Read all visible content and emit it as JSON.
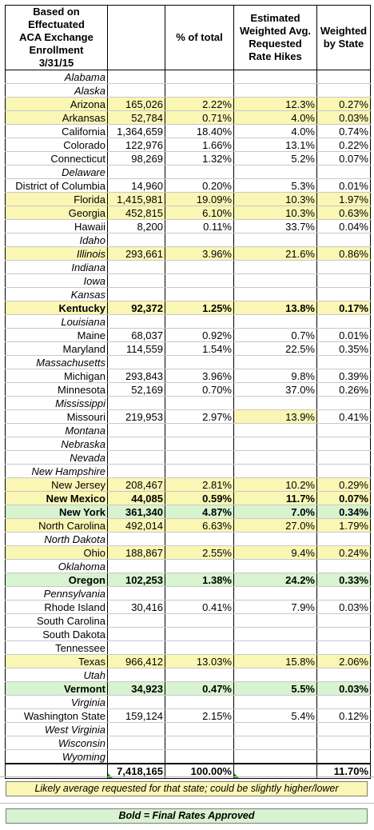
{
  "headers": {
    "col0": "Based on Effectuated\nACA Exchange Enrollment\n3/31/15",
    "col1": "",
    "col2": "% of total",
    "col3": "Estimated\nWeighted Avg.\nRequested\nRate Hikes",
    "col4": "Weighted\nby State"
  },
  "rows": [
    {
      "state": "Alabama",
      "enroll": "",
      "pct": "",
      "hike": "",
      "weighted": "",
      "style": "none"
    },
    {
      "state": "Alaska",
      "enroll": "",
      "pct": "",
      "hike": "",
      "weighted": "",
      "style": "none"
    },
    {
      "state": "Arizona",
      "enroll": "165,026",
      "pct": "2.22%",
      "hike": "12.3%",
      "weighted": "0.27%",
      "style": "yellow"
    },
    {
      "state": "Arkansas",
      "enroll": "52,784",
      "pct": "0.71%",
      "hike": "4.0%",
      "weighted": "0.03%",
      "style": "yellow"
    },
    {
      "state": "California",
      "enroll": "1,364,659",
      "pct": "18.40%",
      "hike": "4.0%",
      "weighted": "0.74%",
      "style": "plain"
    },
    {
      "state": "Colorado",
      "enroll": "122,976",
      "pct": "1.66%",
      "hike": "13.1%",
      "weighted": "0.22%",
      "style": "plain"
    },
    {
      "state": "Connecticut",
      "enroll": "98,269",
      "pct": "1.32%",
      "hike": "5.2%",
      "weighted": "0.07%",
      "style": "plain"
    },
    {
      "state": "Delaware",
      "enroll": "",
      "pct": "",
      "hike": "",
      "weighted": "",
      "style": "none"
    },
    {
      "state": "District of Columbia",
      "enroll": "14,960",
      "pct": "0.20%",
      "hike": "5.3%",
      "weighted": "0.01%",
      "style": "plain"
    },
    {
      "state": "Florida",
      "enroll": "1,415,981",
      "pct": "19.09%",
      "hike": "10.3%",
      "weighted": "1.97%",
      "style": "yellow"
    },
    {
      "state": "Georgia",
      "enroll": "452,815",
      "pct": "6.10%",
      "hike": "10.3%",
      "weighted": "0.63%",
      "style": "yellow"
    },
    {
      "state": "Hawaii",
      "enroll": "8,200",
      "pct": "0.11%",
      "hike": "33.7%",
      "weighted": "0.04%",
      "style": "plain"
    },
    {
      "state": "Idaho",
      "enroll": "",
      "pct": "",
      "hike": "",
      "weighted": "",
      "style": "none"
    },
    {
      "state": "Illinois",
      "enroll": "293,661",
      "pct": "3.96%",
      "hike": "21.6%",
      "weighted": "0.86%",
      "style": "yellow-italic"
    },
    {
      "state": "Indiana",
      "enroll": "",
      "pct": "",
      "hike": "",
      "weighted": "",
      "style": "none"
    },
    {
      "state": "Iowa",
      "enroll": "",
      "pct": "",
      "hike": "",
      "weighted": "",
      "style": "none"
    },
    {
      "state": "Kansas",
      "enroll": "",
      "pct": "",
      "hike": "",
      "weighted": "",
      "style": "none"
    },
    {
      "state": "Kentucky",
      "enroll": "92,372",
      "pct": "1.25%",
      "hike": "13.8%",
      "weighted": "0.17%",
      "style": "yellow-bold"
    },
    {
      "state": "Louisiana",
      "enroll": "",
      "pct": "",
      "hike": "",
      "weighted": "",
      "style": "none"
    },
    {
      "state": "Maine",
      "enroll": "68,037",
      "pct": "0.92%",
      "hike": "0.7%",
      "weighted": "0.01%",
      "style": "plain"
    },
    {
      "state": "Maryland",
      "enroll": "114,559",
      "pct": "1.54%",
      "hike": "22.5%",
      "weighted": "0.35%",
      "style": "plain"
    },
    {
      "state": "Massachusetts",
      "enroll": "",
      "pct": "",
      "hike": "",
      "weighted": "",
      "style": "none"
    },
    {
      "state": "Michigan",
      "enroll": "293,843",
      "pct": "3.96%",
      "hike": "9.8%",
      "weighted": "0.39%",
      "style": "plain"
    },
    {
      "state": "Minnesota",
      "enroll": "52,169",
      "pct": "0.70%",
      "hike": "37.0%",
      "weighted": "0.26%",
      "style": "plain"
    },
    {
      "state": "Mississippi",
      "enroll": "",
      "pct": "",
      "hike": "",
      "weighted": "",
      "style": "none"
    },
    {
      "state": "Missouri",
      "enroll": "219,953",
      "pct": "2.97%",
      "hike": "13.9%",
      "weighted": "0.41%",
      "style": "hike-yellow"
    },
    {
      "state": "Montana",
      "enroll": "",
      "pct": "",
      "hike": "",
      "weighted": "",
      "style": "none"
    },
    {
      "state": "Nebraska",
      "enroll": "",
      "pct": "",
      "hike": "",
      "weighted": "",
      "style": "none"
    },
    {
      "state": "Nevada",
      "enroll": "",
      "pct": "",
      "hike": "",
      "weighted": "",
      "style": "none"
    },
    {
      "state": "New Hampshire",
      "enroll": "",
      "pct": "",
      "hike": "",
      "weighted": "",
      "style": "none"
    },
    {
      "state": "New Jersey",
      "enroll": "208,467",
      "pct": "2.81%",
      "hike": "10.2%",
      "weighted": "0.29%",
      "style": "yellow"
    },
    {
      "state": "New Mexico",
      "enroll": "44,085",
      "pct": "0.59%",
      "hike": "11.7%",
      "weighted": "0.07%",
      "style": "yellow-bold"
    },
    {
      "state": "New York",
      "enroll": "361,340",
      "pct": "4.87%",
      "hike": "7.0%",
      "weighted": "0.34%",
      "style": "green-bold"
    },
    {
      "state": "North Carolina",
      "enroll": "492,014",
      "pct": "6.63%",
      "hike": "27.0%",
      "weighted": "1.79%",
      "style": "yellow"
    },
    {
      "state": "North Dakota",
      "enroll": "",
      "pct": "",
      "hike": "",
      "weighted": "",
      "style": "none"
    },
    {
      "state": "Ohio",
      "enroll": "188,867",
      "pct": "2.55%",
      "hike": "9.4%",
      "weighted": "0.24%",
      "style": "yellow"
    },
    {
      "state": "Oklahoma",
      "enroll": "",
      "pct": "",
      "hike": "",
      "weighted": "",
      "style": "none"
    },
    {
      "state": "Oregon",
      "enroll": "102,253",
      "pct": "1.38%",
      "hike": "24.2%",
      "weighted": "0.33%",
      "style": "green-bold"
    },
    {
      "state": "Pennsylvania",
      "enroll": "",
      "pct": "",
      "hike": "",
      "weighted": "",
      "style": "none"
    },
    {
      "state": "Rhode Island",
      "enroll": "30,416",
      "pct": "0.41%",
      "hike": "7.9%",
      "weighted": "0.03%",
      "style": "plain"
    },
    {
      "state": "South Carolina",
      "enroll": "",
      "pct": "",
      "hike": "",
      "weighted": "",
      "style": "plain"
    },
    {
      "state": "South Dakota",
      "enroll": "",
      "pct": "",
      "hike": "",
      "weighted": "",
      "style": "plain"
    },
    {
      "state": "Tennessee",
      "enroll": "",
      "pct": "",
      "hike": "",
      "weighted": "",
      "style": "plain"
    },
    {
      "state": "Texas",
      "enroll": "966,412",
      "pct": "13.03%",
      "hike": "15.8%",
      "weighted": "2.06%",
      "style": "yellow"
    },
    {
      "state": "Utah",
      "enroll": "",
      "pct": "",
      "hike": "",
      "weighted": "",
      "style": "none"
    },
    {
      "state": "Vermont",
      "enroll": "34,923",
      "pct": "0.47%",
      "hike": "5.5%",
      "weighted": "0.03%",
      "style": "green-bold"
    },
    {
      "state": "Virginia",
      "enroll": "",
      "pct": "",
      "hike": "",
      "weighted": "",
      "style": "none"
    },
    {
      "state": "Washington State",
      "enroll": "159,124",
      "pct": "2.15%",
      "hike": "5.4%",
      "weighted": "0.12%",
      "style": "plain"
    },
    {
      "state": "West Virginia",
      "enroll": "",
      "pct": "",
      "hike": "",
      "weighted": "",
      "style": "none"
    },
    {
      "state": "Wisconsin",
      "enroll": "",
      "pct": "",
      "hike": "",
      "weighted": "",
      "style": "none"
    },
    {
      "state": "Wyoming",
      "enroll": "",
      "pct": "",
      "hike": "",
      "weighted": "",
      "style": "none"
    }
  ],
  "totals": {
    "enroll": "7,418,165",
    "pct": "100.00%",
    "weighted": "11.70%"
  },
  "legend": {
    "yellow_note": "Likely average requested for that state; could be slightly higher/lower",
    "green_note": "Bold = Final Rates Approved"
  },
  "colors": {
    "yellow": "#faf6b4",
    "green": "#d7f3cf"
  }
}
